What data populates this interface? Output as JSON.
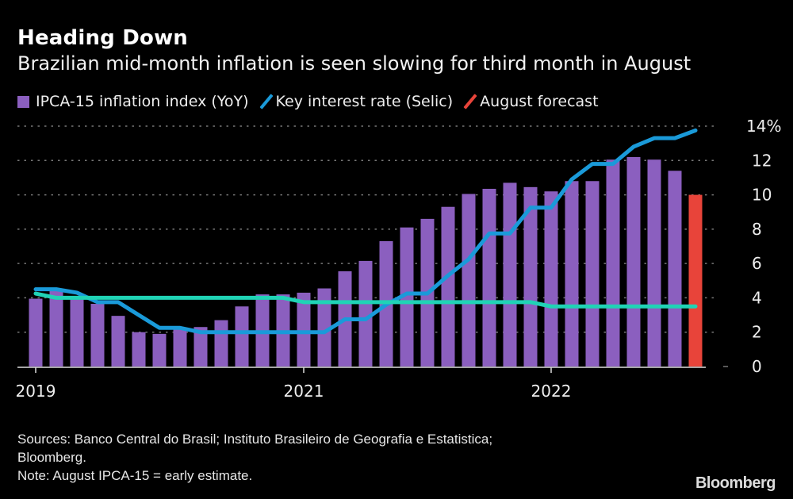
{
  "colors": {
    "bars": "#8b5fbf",
    "forecast": "#e8443a",
    "selic": "#1a9ad9",
    "target": "#20d3b5",
    "grid": "#777777",
    "axis": "#dddddd"
  },
  "chart_data": {
    "type": "bar",
    "title": "Heading Down",
    "subtitle": "Brazilian mid-month inflation is seen slowing for third month in August",
    "legend": [
      {
        "name": "IPCA-15 inflation index (YoY)",
        "marker": "square",
        "color": "#8b5fbf"
      },
      {
        "name": "Key interest rate (Selic)",
        "marker": "line",
        "color": "#1a9ad9"
      },
      {
        "name": "August forecast",
        "marker": "line",
        "color": "#e8443a"
      }
    ],
    "legend_position": "top-left",
    "x_tick_labels": [
      {
        "index": 0,
        "label": "2019"
      },
      {
        "index": 13,
        "label": "2021"
      },
      {
        "index": 25,
        "label": "2022"
      }
    ],
    "y_ticks": [
      "0",
      "2",
      "4",
      "6",
      "8",
      "10",
      "12",
      "14%"
    ],
    "ylim": [
      0,
      14
    ],
    "y_axis_side": "right",
    "grid": true,
    "series": [
      {
        "name": "IPCA-15 inflation index (YoY)",
        "type": "bar",
        "values": [
          3.95,
          4.4,
          4.1,
          3.65,
          2.95,
          2.0,
          1.9,
          2.15,
          2.3,
          2.7,
          3.5,
          4.2,
          4.2,
          4.3,
          4.55,
          5.55,
          6.15,
          7.3,
          8.1,
          8.6,
          9.3,
          10.05,
          10.35,
          10.7,
          10.45,
          10.2,
          10.8,
          10.8,
          12.05,
          12.2,
          12.05,
          11.4,
          null
        ]
      },
      {
        "name": "August forecast",
        "type": "bar",
        "values": [
          null,
          null,
          null,
          null,
          null,
          null,
          null,
          null,
          null,
          null,
          null,
          null,
          null,
          null,
          null,
          null,
          null,
          null,
          null,
          null,
          null,
          null,
          null,
          null,
          null,
          null,
          null,
          null,
          null,
          null,
          null,
          null,
          10.0
        ]
      },
      {
        "name": "Key interest rate (Selic)",
        "type": "line",
        "values": [
          4.5,
          4.5,
          4.3,
          3.75,
          3.75,
          3.0,
          2.25,
          2.25,
          2.0,
          2.0,
          2.0,
          2.0,
          2.0,
          2.0,
          2.0,
          2.75,
          2.75,
          3.6,
          4.25,
          4.25,
          5.3,
          6.25,
          7.75,
          7.75,
          9.25,
          9.25,
          10.9,
          11.8,
          11.8,
          12.8,
          13.3,
          13.3,
          13.75
        ]
      },
      {
        "type": "line",
        "values": [
          4.25,
          4.0,
          4.0,
          4.0,
          4.0,
          4.0,
          4.0,
          4.0,
          4.0,
          4.0,
          4.0,
          4.0,
          4.0,
          3.75,
          3.75,
          3.75,
          3.75,
          3.75,
          3.75,
          3.75,
          3.75,
          3.75,
          3.75,
          3.75,
          3.75,
          3.5,
          3.5,
          3.5,
          3.5,
          3.5,
          3.5,
          3.5,
          3.5
        ]
      }
    ]
  },
  "footer": {
    "sources": "Sources: Banco Central do Brasil; Instituto Brasileiro de Geografia e Estatistica;",
    "sources2": "Bloomberg.",
    "note": "Note: August IPCA-15 = early estimate."
  },
  "logo": "Bloomberg"
}
